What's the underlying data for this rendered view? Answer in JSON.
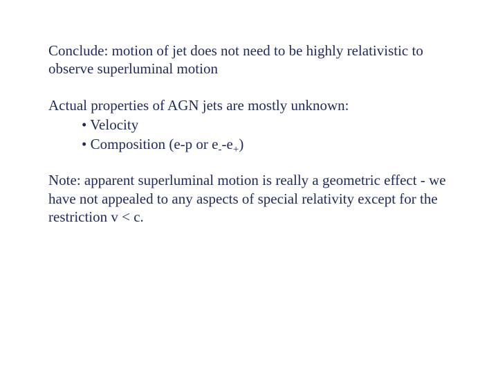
{
  "text_color": "#1e2a5a",
  "background_color": "#ffffff",
  "font_family": "Times New Roman",
  "font_size_pt": 21,
  "para1": "Conclude: motion of jet does not need to be highly relativistic to observe superluminal motion",
  "para2_lead": "Actual properties of AGN jets are mostly unknown:",
  "bullet1": "• Velocity",
  "bullet2_prefix": "• Composition (e-p or e",
  "bullet2_sub1": "-",
  "bullet2_mid": "-e",
  "bullet2_sub2": "+",
  "bullet2_suffix": ")",
  "para3": "Note: apparent superluminal motion is really a geometric effect - we have not appealed to any aspects of special relativity except for the restriction v < c."
}
